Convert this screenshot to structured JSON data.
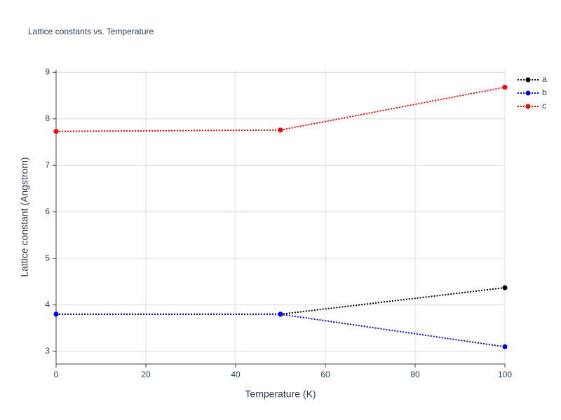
{
  "chart_data": {
    "type": "line",
    "title": "Lattice constants vs. Temperature",
    "x_label": "Temperature (K)",
    "y_label": "Lattice constant (Angstrom)",
    "x": [
      0,
      50,
      100
    ],
    "series": [
      {
        "name": "a",
        "color": "#000000",
        "values": [
          3.8,
          3.8,
          4.37
        ]
      },
      {
        "name": "b",
        "color": "#0000ff",
        "values": [
          3.8,
          3.8,
          3.1
        ]
      },
      {
        "name": "c",
        "color": "#ff0000",
        "values": [
          7.73,
          7.76,
          8.68
        ]
      }
    ],
    "xlim": [
      0,
      100
    ],
    "xticks": [
      0,
      20,
      40,
      60,
      80,
      100
    ],
    "ylim": [
      2.73,
      9.05
    ],
    "yticks": [
      3,
      4,
      5,
      6,
      7,
      8,
      9
    ],
    "grid": true,
    "legend": "top-right",
    "line_style": "dotted",
    "markers": true
  }
}
